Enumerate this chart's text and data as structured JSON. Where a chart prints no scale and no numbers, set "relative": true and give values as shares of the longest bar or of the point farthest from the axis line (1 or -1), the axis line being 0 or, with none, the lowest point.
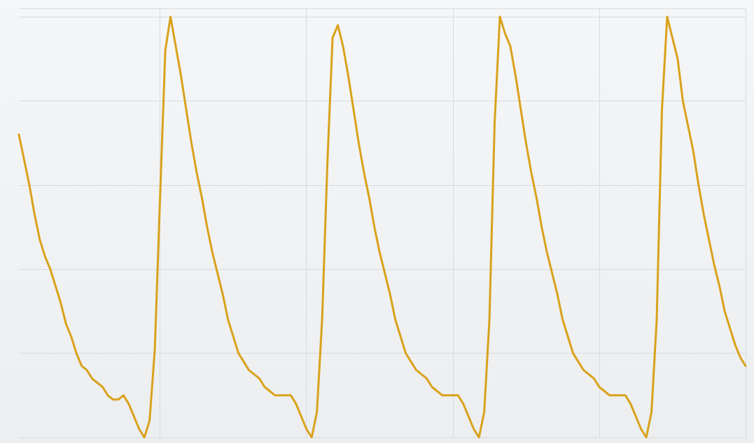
{
  "chart_data": {
    "type": "line",
    "relative": true,
    "grid": true,
    "line_style": "solid",
    "categories": [
      null,
      null,
      null,
      null,
      null,
      null,
      null,
      null,
      null,
      null,
      null,
      null,
      null,
      null,
      null,
      null,
      null,
      null,
      null,
      null,
      null,
      null,
      null,
      null,
      null,
      null,
      null,
      null,
      null,
      null,
      null,
      null,
      null,
      null,
      null,
      null,
      null,
      null,
      null,
      null,
      null,
      null,
      null,
      null,
      null,
      null,
      null,
      null,
      null,
      null,
      null,
      null,
      null,
      null,
      null,
      null,
      null,
      null,
      null,
      null,
      null,
      null,
      null,
      null,
      null,
      null,
      null,
      null,
      null,
      null,
      null,
      null,
      null,
      null,
      null,
      null,
      null,
      null,
      null,
      null,
      null,
      null,
      null,
      null,
      null,
      null,
      null,
      null,
      null,
      null,
      null,
      null,
      null,
      null,
      null,
      null,
      null,
      null,
      null,
      null,
      null,
      null,
      null,
      null,
      null,
      null,
      null,
      null,
      null,
      null,
      null,
      null,
      null,
      null,
      null,
      null,
      null,
      null,
      null,
      null,
      null,
      null,
      null,
      null,
      null,
      null,
      null,
      null,
      null,
      null,
      null,
      null,
      null,
      null,
      null,
      null,
      null,
      null,
      null,
      null
    ],
    "series": [
      {
        "color": "#d9a21b",
        "values": [
          0.72,
          0.66,
          0.6,
          0.53,
          0.47,
          0.43,
          0.4,
          0.36,
          0.32,
          0.27,
          0.24,
          0.2,
          0.17,
          0.16,
          0.14,
          0.13,
          0.12,
          0.1,
          0.09,
          0.09,
          0.1,
          0.08,
          0.05,
          0.02,
          0.0,
          0.04,
          0.21,
          0.57,
          0.92,
          1.0,
          0.93,
          0.86,
          0.78,
          0.7,
          0.63,
          0.57,
          0.5,
          0.44,
          0.39,
          0.34,
          0.28,
          0.24,
          0.2,
          0.18,
          0.16,
          0.15,
          0.14,
          0.12,
          0.11,
          0.1,
          0.1,
          0.1,
          0.1,
          0.08,
          0.05,
          0.02,
          0.0,
          0.06,
          0.28,
          0.65,
          0.95,
          0.98,
          0.93,
          0.86,
          0.78,
          0.7,
          0.63,
          0.57,
          0.5,
          0.44,
          0.39,
          0.34,
          0.28,
          0.24,
          0.2,
          0.18,
          0.16,
          0.15,
          0.14,
          0.12,
          0.11,
          0.1,
          0.1,
          0.1,
          0.1,
          0.08,
          0.05,
          0.02,
          0.0,
          0.06,
          0.28,
          0.75,
          1.0,
          0.96,
          0.93,
          0.86,
          0.78,
          0.7,
          0.63,
          0.57,
          0.5,
          0.44,
          0.39,
          0.34,
          0.28,
          0.24,
          0.2,
          0.18,
          0.16,
          0.15,
          0.14,
          0.12,
          0.11,
          0.1,
          0.1,
          0.1,
          0.1,
          0.08,
          0.05,
          0.02,
          0.0,
          0.06,
          0.28,
          0.78,
          1.0,
          0.95,
          0.9,
          0.8,
          0.74,
          0.68,
          0.6,
          0.53,
          0.47,
          0.41,
          0.36,
          0.3,
          0.26,
          0.22,
          0.19,
          0.17
        ]
      }
    ]
  }
}
